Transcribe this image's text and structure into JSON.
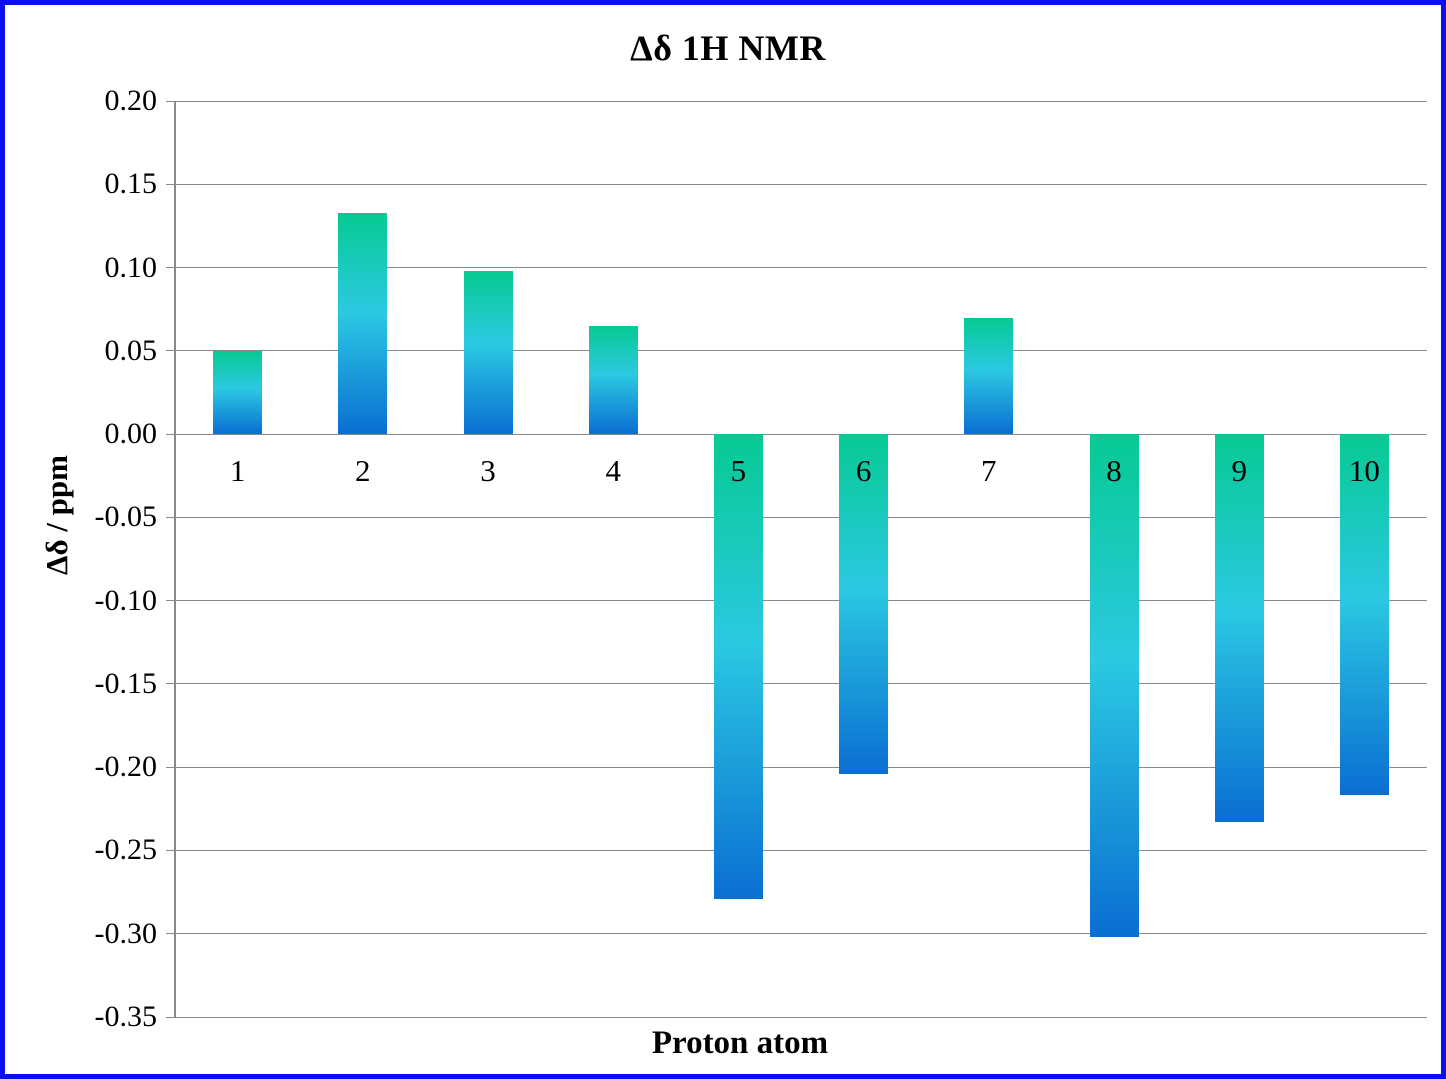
{
  "chart_data": {
    "type": "bar",
    "title": "Δδ 1H NMR",
    "xlabel": "Proton atom",
    "ylabel": "Δδ / ppm",
    "categories": [
      "1",
      "2",
      "3",
      "4",
      "5",
      "6",
      "7",
      "8",
      "9",
      "10"
    ],
    "values": [
      0.05,
      0.133,
      0.098,
      0.065,
      -0.279,
      -0.204,
      0.07,
      -0.302,
      -0.233,
      -0.217
    ],
    "ylim": [
      -0.35,
      0.2
    ],
    "ytick_step": 0.05,
    "ytick_labels": [
      "0.20",
      "0.15",
      "0.10",
      "0.05",
      "0.00",
      "-0.05",
      "-0.10",
      "-0.15",
      "-0.20",
      "-0.25",
      "-0.30",
      "-0.35"
    ],
    "grid": true,
    "legend": false,
    "colors": {
      "bar_gradient_top": "#06ca92",
      "bar_gradient_mid": "#2bc9e2",
      "bar_gradient_bottom": "#0a6ed2",
      "gridline": "#8a8a8a",
      "frame_border": "#0d0df2",
      "text": "#000000"
    }
  }
}
